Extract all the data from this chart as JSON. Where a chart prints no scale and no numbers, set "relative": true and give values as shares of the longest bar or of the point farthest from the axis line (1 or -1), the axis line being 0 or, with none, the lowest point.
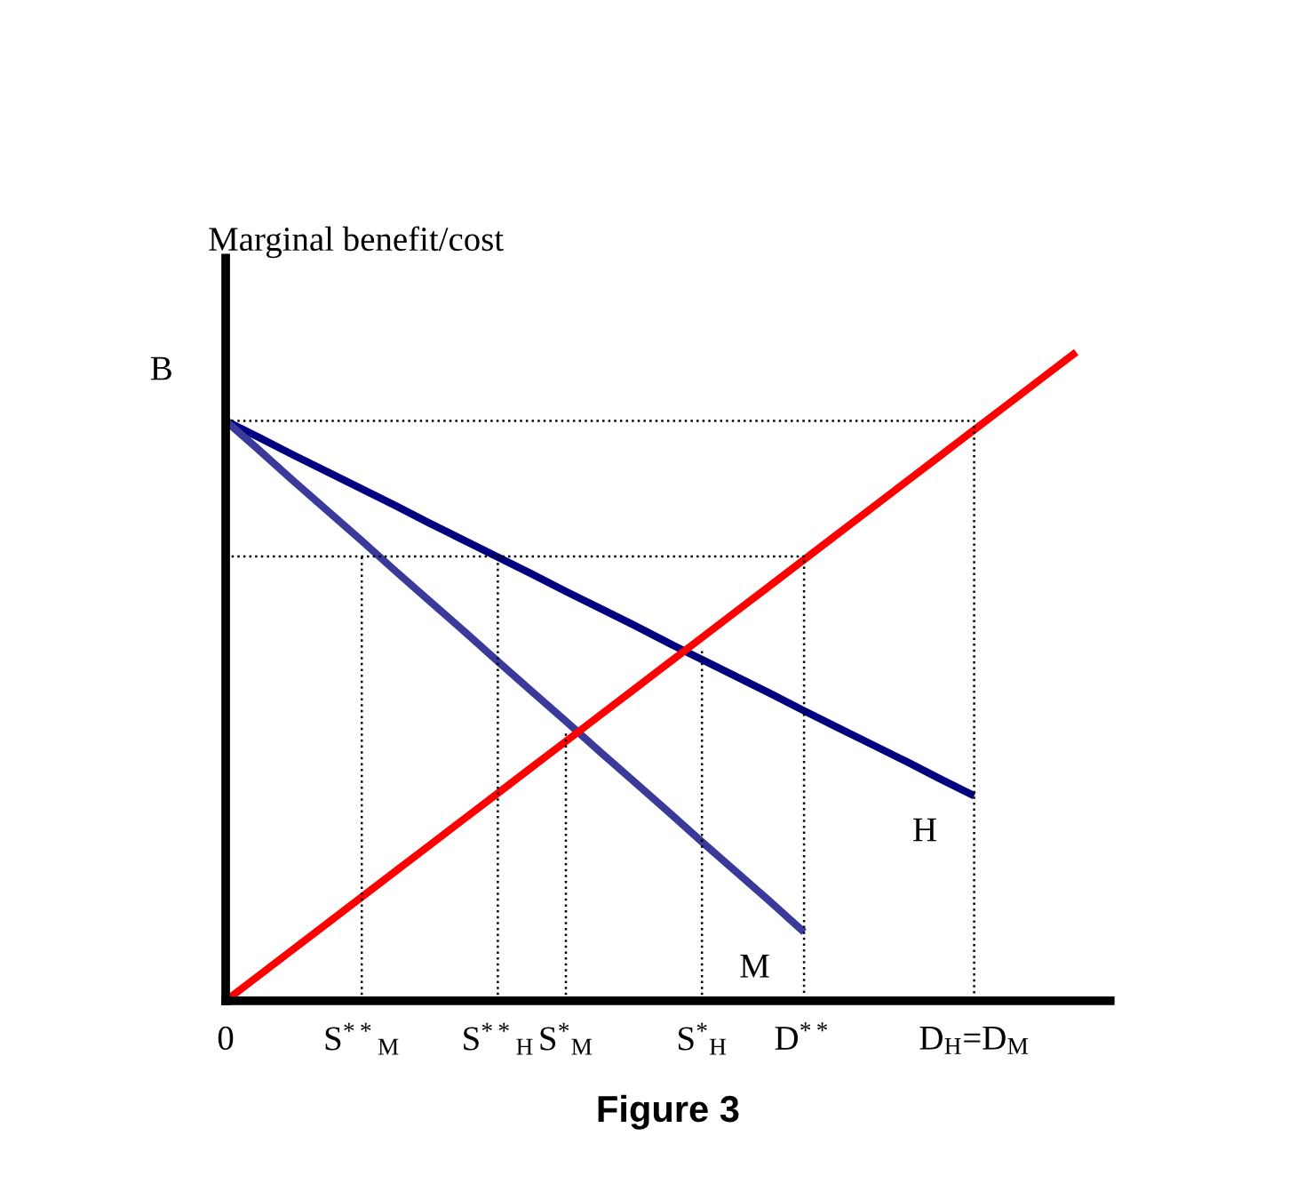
{
  "chart_data": {
    "type": "line",
    "relative": true,
    "title": "Figure 3",
    "ylabel": "Marginal benefit/cost",
    "categories": [
      "0",
      null,
      null,
      null,
      "S$^{**}$$_{M}$",
      null,
      null,
      null,
      "S$^{**}$$_{H}$",
      null,
      "S$^{*}$$_{M}$",
      null,
      null,
      null,
      "S$^{*}$$_{H}$",
      null,
      null,
      "D$^{**}$",
      null,
      null,
      null,
      null,
      "D$_{H}$=D$_{M}$",
      null,
      null,
      null,
      null
    ],
    "annotations": [
      "B"
    ],
    "series": [
      {
        "name": "H",
        "color": "#000080",
        "values": [
          0.894,
          0.868,
          0.841,
          0.815,
          0.789,
          0.763,
          0.736,
          0.71,
          0.684,
          0.658,
          0.631,
          0.605,
          0.579,
          0.552,
          0.526,
          0.5,
          0.474,
          0.447,
          0.421,
          0.395,
          0.369,
          0.342,
          0.316,
          null,
          null,
          null,
          null
        ]
      },
      {
        "name": "M",
        "color": "#3a3a9a",
        "values": [
          0.894,
          0.848,
          0.801,
          0.755,
          0.709,
          0.662,
          0.616,
          0.57,
          0.523,
          0.477,
          0.431,
          0.384,
          0.338,
          0.292,
          0.245,
          0.199,
          0.153,
          0.106,
          null,
          null,
          null,
          null,
          null,
          null,
          null,
          null,
          null
        ]
      },
      {
        "color": "#ff0000",
        "values": [
          0,
          0.04,
          0.08,
          0.12,
          0.16,
          0.2,
          0.24,
          0.28,
          0.32,
          0.36,
          0.4,
          0.44,
          0.48,
          0.52,
          0.56,
          0.6,
          0.64,
          0.68,
          0.72,
          0.76,
          0.8,
          0.84,
          0.88,
          0.92,
          0.96,
          1.0,
          null
        ]
      },
      {
        "color": "#000000",
        "line_style": "dotted",
        "x": [
          "0",
          "D$_{H}$=D$_{M}$",
          "D$_{H}$=D$_{M}$"
        ],
        "values": [
          0.894,
          0.894,
          0
        ]
      },
      {
        "color": "#000000",
        "line_style": "dotted",
        "x": [
          "0",
          "D$^{**}$",
          "D$^{**}$"
        ],
        "values": [
          0.685,
          0.685,
          0
        ]
      },
      {
        "color": "#000000",
        "line_style": "dotted",
        "x": [
          "S$^{**}$$_{M}$",
          "S$^{**}$$_{M}$"
        ],
        "values": [
          0,
          0.685
        ]
      },
      {
        "color": "#000000",
        "line_style": "dotted",
        "x": [
          "S$^{**}$$_{H}$",
          "S$^{**}$$_{H}$"
        ],
        "values": [
          0,
          0.685
        ]
      },
      {
        "color": "#000000",
        "line_style": "dotted",
        "x": [
          "S$^{*}$$_{M}$",
          "S$^{*}$$_{M}$"
        ],
        "values": [
          0,
          0.413
        ]
      },
      {
        "color": "#000000",
        "line_style": "dotted",
        "x": [
          "S$^{*}$$_{H}$",
          "S$^{*}$$_{H}$"
        ],
        "values": [
          0,
          0.541
        ]
      }
    ]
  }
}
